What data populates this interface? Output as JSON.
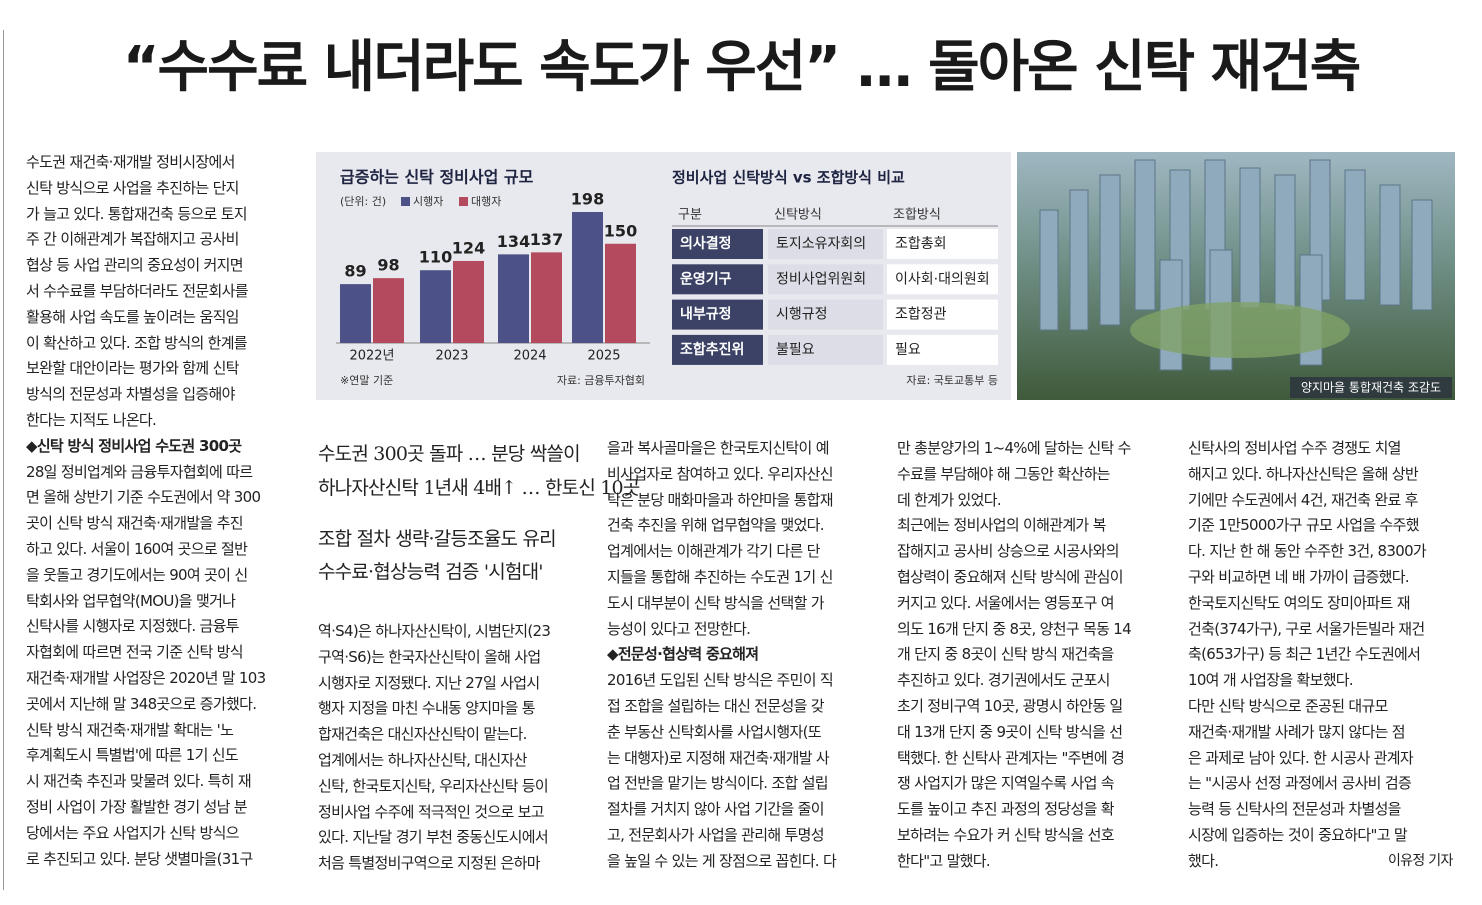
{
  "headline": "“수수료 내더라도 속도가 우선” … 돌아온 신탁 재건축",
  "chart_data": {
    "type": "bar",
    "title": "급증하는 신탁 정비사업 규모",
    "unit": "(단위: 건)",
    "categories": [
      "2022년",
      "2023",
      "2024",
      "2025"
    ],
    "series": [
      {
        "name": "시행자",
        "color": "#4c5288",
        "values": [
          89,
          110,
          134,
          198
        ]
      },
      {
        "name": "대행자",
        "color": "#b34a5e",
        "values": [
          98,
          124,
          137,
          150
        ]
      }
    ],
    "note": "※연말 기준",
    "source": "자료: 금융투자협회"
  },
  "table": {
    "title": "정비사업 신탁방식 vs 조합방식 비교",
    "headers": [
      "구분",
      "신탁방식",
      "조합방식"
    ],
    "rows": [
      [
        "의사결정",
        "토지소유자회의",
        "조합총회"
      ],
      [
        "운영기구",
        "정비사업위원회",
        "이사회·대의원회"
      ],
      [
        "내부규정",
        "시행규정",
        "조합정관"
      ],
      [
        "조합추진위",
        "불필요",
        "필요"
      ]
    ],
    "source": "자료: 국토교통부 등"
  },
  "photo": {
    "caption": "양지마을 통합재건축 조감도"
  },
  "subheads": [
    "수도권 300곳 돌파 … 분당 싹쓸이",
    "하나자산신탁 1년새 4배↑ … 한토신 10곳",
    "조합 절차 생략·갈등조율도 유리",
    "수수료·협상능력 검증 '시험대'"
  ],
  "columns": [
    [
      "수도권 재건축·재개발 정비시장에서",
      "신탁 방식으로 사업을 추진하는 단지",
      "가 늘고 있다. 통합재건축 등으로 토지",
      "주 간 이해관계가 복잡해지고 공사비",
      "협상 등 사업 관리의 중요성이 커지면",
      "서 수수료를 부담하더라도 전문회사를",
      "활용해 사업 속도를 높이려는 움직임",
      "이 확산하고 있다. 조합 방식의 한계를",
      "보완할 대안이라는 평가와 함께 신탁",
      "방식의 전문성과 차별성을 입증해야",
      "한다는 지적도 나온다.",
      "◆신탁 방식 정비사업 수도권 300곳",
      "28일 정비업계와 금융투자협회에 따르",
      "면 올해 상반기 기준 수도권에서 약 300",
      "곳이 신탁 방식 재건축·재개발을 추진",
      "하고 있다. 서울이 160여 곳으로 절반",
      "을 웃돌고 경기도에서는 90여 곳이 신",
      "탁회사와 업무협약(MOU)을 맺거나",
      "신탁사를 시행자로 지정했다. 금융투",
      "자협회에 따르면 전국 기준 신탁 방식",
      "재건축·재개발 사업장은 2020년 말 103",
      "곳에서 지난해 말 348곳으로 증가했다.",
      "신탁 방식 재건축·재개발 확대는 '노",
      "후계획도시 특별법'에 따른 1기 신도",
      "시 재건축 추진과 맞물려 있다. 특히 재",
      "정비 사업이 가장 활발한 경기 성남 분",
      "당에서는 주요 사업지가 신탁 방식으",
      "로 추진되고 있다. 분당 샛별마을(31구"
    ],
    [
      "역·S4)은 하나자산신탁이, 시범단지(23",
      "구역·S6)는 한국자산신탁이 올해 사업",
      "시행자로 지정됐다. 지난 27일 사업시",
      "행자 지정을 마친 수내동 양지마을 통",
      "합재건축은 대신자산신탁이 맡는다.",
      "업계에서는 하나자산신탁, 대신자산",
      "신탁, 한국토지신탁, 우리자산신탁 등이",
      "정비사업 수주에 적극적인 것으로 보고",
      "있다. 지난달 경기 부천 중동신도시에서",
      "처음 특별정비구역으로 지정된 은하마"
    ],
    [
      "을과 복사골마을은 한국토지신탁이 예",
      "비사업자로 참여하고 있다. 우리자산신",
      "탁은 분당 매화마을과 하얀마을 통합재",
      "건축 추진을 위해 업무협약을 맺었다.",
      "업계에서는 이해관계가 각기 다른 단",
      "지들을 통합해 추진하는 수도권 1기 신",
      "도시 대부분이 신탁 방식을 선택할 가",
      "능성이 있다고 전망한다.",
      "◆전문성·협상력 중요해져",
      "2016년 도입된 신탁 방식은 주민이 직",
      "접 조합을 설립하는 대신 전문성을 갖",
      "춘 부동산 신탁회사를 사업시행자(또",
      "는 대행자)로 지정해 재건축·재개발 사",
      "업 전반을 맡기는 방식이다. 조합 설립",
      "절차를 거치지 않아 사업 기간을 줄이",
      "고, 전문회사가 사업을 관리해 투명성",
      "을 높일 수 있는 게 장점으로 꼽힌다. 다"
    ],
    [
      "만 총분양가의 1~4%에 달하는 신탁 수",
      "수료를 부담해야 해 그동안 확산하는",
      "데 한계가 있었다.",
      "최근에는 정비사업의 이해관계가 복",
      "잡해지고 공사비 상승으로 시공사와의",
      "협상력이 중요해져 신탁 방식에 관심이",
      "커지고 있다. 서울에서는 영등포구 여",
      "의도 16개 단지 중 8곳, 양천구 목동 14",
      "개 단지 중 8곳이 신탁 방식 재건축을",
      "추진하고 있다. 경기권에서도 군포시",
      "초기 정비구역 10곳, 광명시 하안동 일",
      "대 13개 단지 중 9곳이 신탁 방식을 선",
      "택했다. 한 신탁사 관계자는 \"주변에 경",
      "쟁 사업지가 많은 지역일수록 사업 속",
      "도를 높이고 추진 과정의 정당성을 확",
      "보하려는 수요가 커 신탁 방식을 선호",
      "한다\"고 말했다."
    ],
    [
      "신탁사의 정비사업 수주 경쟁도 치열",
      "해지고 있다. 하나자산신탁은 올해 상반",
      "기에만 수도권에서 4건, 재건축 완료 후",
      "기준 1만5000가구 규모 사업을 수주했",
      "다. 지난 한 해 동안 수주한 3건, 8300가",
      "구와 비교하면 네 배 가까이 급증했다.",
      "한국토지신탁도 여의도 장미아파트 재",
      "건축(374가구), 구로 서울가든빌라 재건",
      "축(653가구) 등 최근 1년간 수도권에서",
      "10여 개 사업장을 확보했다.",
      "다만 신탁 방식으로 준공된 대규모",
      "재건축·재개발 사례가 많지 않다는 점",
      "은 과제로 남아 있다. 한 시공사 관계자",
      "는 \"시공사 선정 과정에서 공사비 검증",
      "능력 등 신탁사의 전문성과 차별성을",
      "시장에 입증하는 것이 중요하다\"고 말",
      "했다."
    ]
  ],
  "byline": "이유정 기자"
}
